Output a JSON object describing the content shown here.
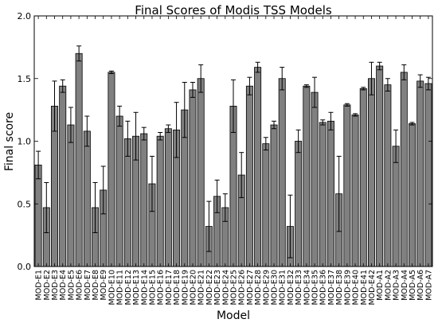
{
  "chart_data": {
    "type": "bar",
    "title": "Final Scores of Modis TSS Models",
    "xlabel": "Model",
    "ylabel": "Final score",
    "ylim": [
      0,
      2.0
    ],
    "yticks": [
      "0.0",
      "0.5",
      "1.0",
      "1.5",
      "2.0"
    ],
    "grid": false,
    "bar_color": "#808080",
    "error_color": "#000000",
    "categories": [
      "MOD-E1",
      "MOD-E2",
      "MOD-E3",
      "MOD-E4",
      "MOD-E5",
      "MOD-E6",
      "MOD-E7",
      "MOD-E8",
      "MOD-E9",
      "MOD-E10",
      "MOD-E11",
      "MOD-E12",
      "MOD-E13",
      "MOD-E14",
      "MOD-E15",
      "MOD-E16",
      "MOD-E17",
      "MOD-E18",
      "MOD-E19",
      "MOD-E20",
      "MOD-E21",
      "MOD-E22",
      "MOD-E23",
      "MOD-E24",
      "MOD-E25",
      "MOD-E26",
      "MOD-E27",
      "MOD-E28",
      "MOD-E29",
      "MOD-E30",
      "MOD-E31",
      "MOD-E32",
      "MOD-E33",
      "MOD-E34",
      "MOD-E35",
      "MOD-E36",
      "MOD-E37",
      "MOD-E38",
      "MOD-E39",
      "MOD-E40",
      "MOD-E41",
      "MOD-E42",
      "MOD-A1",
      "MOD-A2",
      "MOD-A3",
      "MOD-A4",
      "MOD-A5",
      "MOD-A6",
      "MOD-A7"
    ],
    "values": [
      0.81,
      0.47,
      1.28,
      1.44,
      1.13,
      1.7,
      1.08,
      0.47,
      0.61,
      1.55,
      1.2,
      1.02,
      1.04,
      1.06,
      0.66,
      1.04,
      1.1,
      1.09,
      1.25,
      1.41,
      1.5,
      0.32,
      0.56,
      0.47,
      1.28,
      0.73,
      1.44,
      1.59,
      0.98,
      1.13,
      1.5,
      0.32,
      1.0,
      1.44,
      1.39,
      1.15,
      1.16,
      0.58,
      1.29,
      1.21,
      1.42,
      1.5,
      1.6,
      1.45,
      0.96,
      1.55,
      1.14,
      1.48,
      1.46
    ],
    "errors": [
      0.11,
      0.2,
      0.2,
      0.05,
      0.14,
      0.06,
      0.12,
      0.2,
      0.19,
      0.01,
      0.08,
      0.14,
      0.19,
      0.05,
      0.22,
      0.03,
      0.03,
      0.22,
      0.22,
      0.06,
      0.11,
      0.2,
      0.13,
      0.11,
      0.21,
      0.18,
      0.07,
      0.04,
      0.05,
      0.03,
      0.09,
      0.25,
      0.09,
      0.01,
      0.12,
      0.02,
      0.07,
      0.3,
      0.01,
      0.01,
      0.01,
      0.13,
      0.03,
      0.05,
      0.13,
      0.06,
      0.01,
      0.05,
      0.05
    ]
  }
}
